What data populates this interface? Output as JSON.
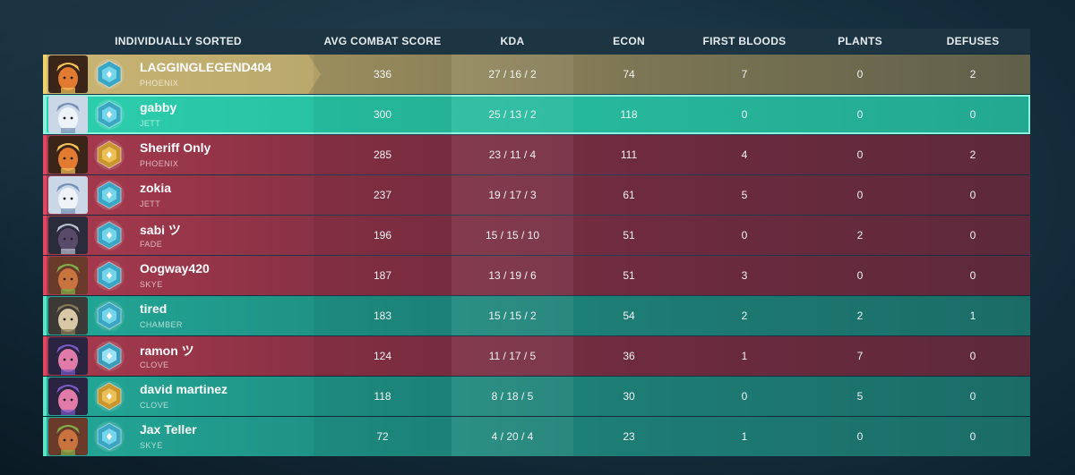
{
  "header": {
    "name": "INDIVIDUALLY SORTED",
    "acs": "AVG COMBAT SCORE",
    "kda": "KDA",
    "econ": "ECON",
    "fb": "FIRST BLOODS",
    "plants": "PLANTS",
    "defuses": "DEFUSES"
  },
  "players": [
    {
      "name": "LAGGINGLEGEND404",
      "agent": "PHOENIX",
      "team": "gold",
      "rank_icon": "diamond-rank-icon",
      "acs": "336",
      "kda": "27 / 16 / 2",
      "econ": "74",
      "fb": "7",
      "plants": "0",
      "defuses": "2"
    },
    {
      "name": "gabby",
      "agent": "JETT",
      "team": "self",
      "rank_icon": "diamond-rank-icon",
      "acs": "300",
      "kda": "25 / 13 / 2",
      "econ": "118",
      "fb": "0",
      "plants": "0",
      "defuses": "0"
    },
    {
      "name": "Sheriff Only",
      "agent": "PHOENIX",
      "team": "red",
      "rank_icon": "gold-rank-icon",
      "acs": "285",
      "kda": "23 / 11 / 4",
      "econ": "111",
      "fb": "4",
      "plants": "0",
      "defuses": "2"
    },
    {
      "name": "zokia",
      "agent": "JETT",
      "team": "red",
      "rank_icon": "diamond-rank-icon",
      "acs": "237",
      "kda": "19 / 17 / 3",
      "econ": "61",
      "fb": "5",
      "plants": "0",
      "defuses": "0"
    },
    {
      "name": "sabi ツ",
      "agent": "FADE",
      "team": "red",
      "rank_icon": "diamond-rank-icon",
      "acs": "196",
      "kda": "15 / 15 / 10",
      "econ": "51",
      "fb": "0",
      "plants": "2",
      "defuses": "0"
    },
    {
      "name": "Oogway420",
      "agent": "SKYE",
      "team": "red",
      "rank_icon": "diamond-rank-icon",
      "acs": "187",
      "kda": "13 / 19 / 6",
      "econ": "51",
      "fb": "3",
      "plants": "0",
      "defuses": "0"
    },
    {
      "name": "tired",
      "agent": "CHAMBER",
      "team": "teal",
      "rank_icon": "diamond-rank-icon",
      "acs": "183",
      "kda": "15 / 15 / 2",
      "econ": "54",
      "fb": "2",
      "plants": "2",
      "defuses": "1"
    },
    {
      "name": "ramon ツ",
      "agent": "CLOVE",
      "team": "red",
      "rank_icon": "platinum-rank-icon",
      "acs": "124",
      "kda": "11 / 17 / 5",
      "econ": "36",
      "fb": "1",
      "plants": "7",
      "defuses": "0"
    },
    {
      "name": "david martinez",
      "agent": "CLOVE",
      "team": "teal",
      "rank_icon": "gold-rank-icon",
      "acs": "118",
      "kda": "8 / 18 / 5",
      "econ": "30",
      "fb": "0",
      "plants": "5",
      "defuses": "0"
    },
    {
      "name": "Jax Teller",
      "agent": "SKYE",
      "team": "teal",
      "rank_icon": "diamond-rank-icon",
      "acs": "72",
      "kda": "4 / 20 / 4",
      "econ": "23",
      "fb": "1",
      "plants": "0",
      "defuses": "0"
    }
  ],
  "colors": {
    "red_team": "#a93a4e",
    "teal_team": "#23a897",
    "highlight_gold": "#c9b574",
    "self_highlight": "#2ccfae"
  }
}
